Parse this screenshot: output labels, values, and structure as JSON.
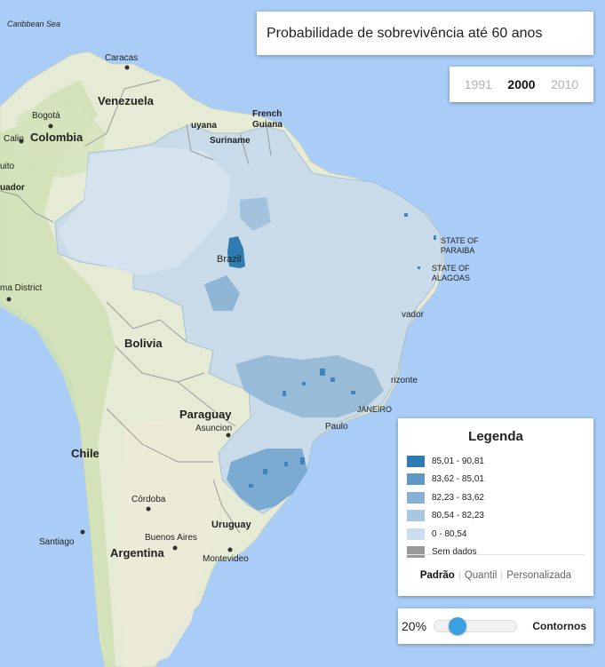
{
  "map": {
    "labels": {
      "caribbean_sea": "Caribbean Sea",
      "caracas": "Caracas",
      "venezuela": "Venezuela",
      "bogota": "Bogotá",
      "colombia": "Colombia",
      "calio": "Calio",
      "uito": "uito",
      "uador": "uador",
      "guyana": "uyana",
      "suriname": "Suriname",
      "french_guiana_1": "French",
      "french_guiana_2": "Guiana",
      "brazil": "Brazil",
      "state_paraiba_1": "STATE OF",
      "state_paraiba_2": "PARAIBA",
      "state_alagoas_1": "STATE OF",
      "state_alagoas_2": "ALAGOAS",
      "ma_district": "ma District",
      "salvador": "vador",
      "bolivia": "Bolivia",
      "belo_horizonte": "rizonte",
      "rio_janeiro": "JANEIRO",
      "paraguay": "Paraguay",
      "asuncion": "Asuncion",
      "paulo": "Paulo",
      "chile": "Chile",
      "cordoba": "Córdoba",
      "uruguay": "Uruguay",
      "buenos_aires": "Buenos Aires",
      "santiago": "Santiago",
      "argentina": "Argentina",
      "montevideo": "Montevideo"
    },
    "colors": {
      "ocean": "#a9cdf6",
      "land": "#e8ecd8",
      "brazil_base": "#c8d9e6",
      "dark": "#2f7cb3"
    }
  },
  "title": "Probabilidade de sobrevivência até 60 anos",
  "years": [
    {
      "label": "1991",
      "active": false
    },
    {
      "label": "2000",
      "active": true
    },
    {
      "label": "2010",
      "active": false
    }
  ],
  "legend": {
    "title": "Legenda",
    "items": [
      {
        "label": "85,01 - 90,81",
        "color": "#2d7bb3"
      },
      {
        "label": "83,62 - 85,01",
        "color": "#5e99c6"
      },
      {
        "label": "82,23 - 83,62",
        "color": "#87b1d3"
      },
      {
        "label": "80,54 - 82,23",
        "color": "#a9c8e0"
      },
      {
        "label": "0 - 80,54",
        "color": "#ccdded"
      },
      {
        "label": "Sem dados",
        "color": "#999999"
      }
    ],
    "modes": [
      {
        "label": "Padrão",
        "active": true
      },
      {
        "label": "Quantil",
        "active": false
      },
      {
        "label": "Personalizada",
        "active": false
      }
    ]
  },
  "opacity": {
    "value_label": "20%",
    "fraction": 0.2,
    "contours_label": "Contornos"
  }
}
